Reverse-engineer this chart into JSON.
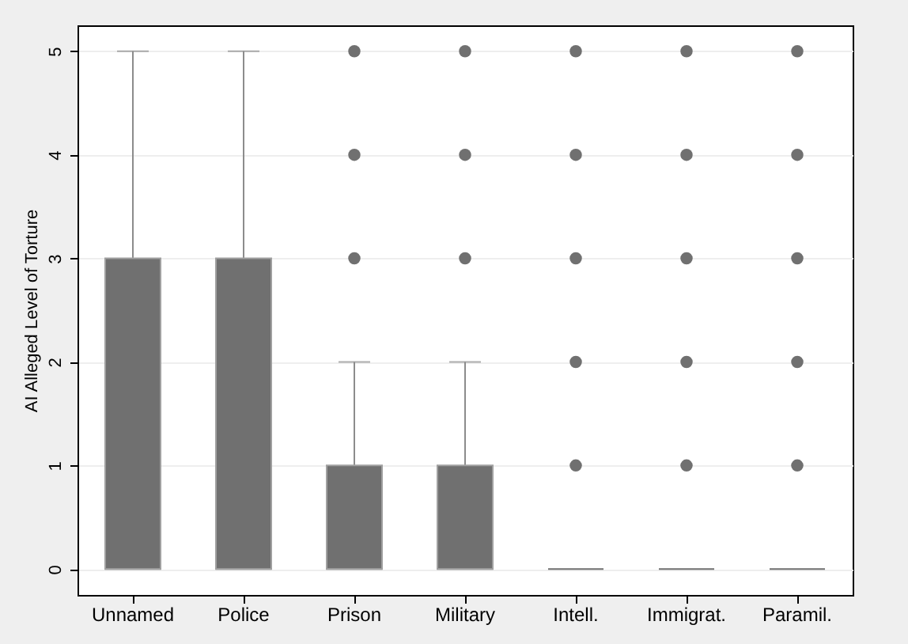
{
  "chart_data": {
    "type": "box",
    "ylabel": "AI Alleged Level of Torture",
    "categories": [
      "Unnamed",
      "Police",
      "Prison",
      "Military",
      "Intell.",
      "Immigrat.",
      "Paramil."
    ],
    "color": "#707070",
    "ylim": [
      -0.25,
      5.25
    ],
    "yticks": [
      0,
      1,
      2,
      3,
      4,
      5
    ],
    "grid": "y",
    "boxes": [
      {
        "low": 0,
        "q1": 0,
        "median": 0,
        "q3": 3,
        "high": 5
      },
      {
        "low": 0,
        "q1": 0,
        "median": 0,
        "q3": 3,
        "high": 5
      },
      {
        "low": 0,
        "q1": 0,
        "median": 0,
        "q3": 1,
        "high": 2,
        "outliers": [
          3,
          4,
          5
        ]
      },
      {
        "low": 0,
        "q1": 0,
        "median": 0,
        "q3": 1,
        "high": 2,
        "outliers": [
          3,
          4,
          5
        ]
      },
      {
        "low": 0,
        "q1": 0,
        "median": 0,
        "q3": 0,
        "high": 0,
        "outliers": [
          1,
          2,
          3,
          4,
          5
        ]
      },
      {
        "low": 0,
        "q1": 0,
        "median": 0,
        "q3": 0,
        "high": 0,
        "outliers": [
          1,
          2,
          3,
          4,
          5
        ]
      },
      {
        "low": 0,
        "q1": 0,
        "median": 0,
        "q3": 0,
        "high": 0,
        "outliers": [
          1,
          2,
          3,
          4,
          5
        ]
      }
    ]
  }
}
